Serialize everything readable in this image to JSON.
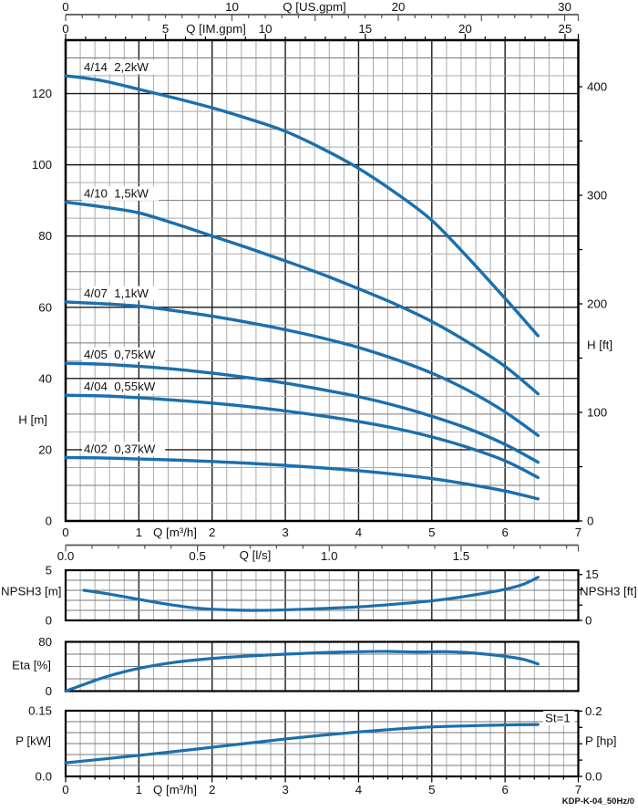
{
  "footer": {
    "code": "KDP-K-04_50Hz/0"
  },
  "colors": {
    "curve": "#1b6fad",
    "grid_minor": "#aaaaaa",
    "grid_mid": "#777777",
    "grid_major": "#1a1a1a",
    "small_grid_h": "#777777",
    "frame": "#000000",
    "axis_line": "#555555",
    "text": "#111111"
  },
  "aux_axes": {
    "us_gpm": {
      "label": "Q [US.gpm]",
      "m3h_per_unit": 0.2271247,
      "max": 30,
      "minor": 1,
      "major": 5,
      "tick_labels": [
        [
          "0",
          0
        ],
        [
          "10",
          10
        ],
        [
          "20",
          20
        ],
        [
          "30",
          30
        ]
      ]
    },
    "im_gpm": {
      "label": "Q [IM.gpm]",
      "m3h_per_unit": 0.27276,
      "max": 25,
      "minor": 1,
      "major": 5,
      "tick_labels": [
        [
          "0",
          0
        ],
        [
          "5",
          5
        ],
        [
          "10",
          10
        ],
        [
          "15",
          15
        ],
        [
          "20",
          20
        ],
        [
          "25",
          25
        ]
      ]
    },
    "l_s": {
      "label": "Q [l/s]",
      "m3h_per_unit": 3.6,
      "max": 1.9,
      "minor": 0.1,
      "major": 0.5,
      "tick_labels": [
        [
          "0.0",
          0
        ],
        [
          "0.5",
          0.5
        ],
        [
          "1.0",
          1
        ],
        [
          "1.5",
          1.5
        ]
      ]
    }
  },
  "bottom_axis": {
    "label": "Q [m³/h]",
    "tick_labels": [
      [
        "0",
        0
      ],
      [
        "1",
        1
      ],
      [
        "2",
        2
      ],
      [
        "3",
        3
      ],
      [
        "4",
        4
      ],
      [
        "5",
        5
      ],
      [
        "6",
        6
      ],
      [
        "7",
        7
      ]
    ]
  },
  "chart_data": [
    {
      "id": "head",
      "type": "line",
      "x_axis": {
        "label": "Q [m³/h]",
        "range": [
          0,
          7
        ],
        "minor": 0.2,
        "major": 1,
        "tick_labels": [
          [
            "0",
            0
          ],
          [
            "1",
            1
          ],
          [
            "2",
            2
          ],
          [
            "3",
            3
          ],
          [
            "4",
            4
          ],
          [
            "5",
            5
          ],
          [
            "6",
            6
          ],
          [
            "7",
            7
          ]
        ]
      },
      "y_left": {
        "label": "H [m]",
        "range": [
          0,
          135
        ],
        "minor": 5,
        "mid": 10,
        "major": 20,
        "tick_labels": [
          [
            "0",
            0
          ],
          [
            "20",
            20
          ],
          [
            "40",
            40
          ],
          [
            "60",
            60
          ],
          [
            "80",
            80
          ],
          [
            "100",
            100
          ],
          [
            "120",
            120
          ]
        ]
      },
      "y_right": {
        "label": "H [ft]",
        "m_per_unit": 0.3048,
        "tick_step": 50,
        "tick_labels": [
          [
            "0",
            0
          ],
          [
            "100",
            100
          ],
          [
            "200",
            200
          ],
          [
            "300",
            300
          ],
          [
            "400",
            400
          ]
        ]
      },
      "series": [
        {
          "name": "4/14",
          "power": "2,2kW",
          "points": [
            [
              0,
              125
            ],
            [
              0.5,
              123.6
            ],
            [
              1,
              121.2
            ],
            [
              1.5,
              118.7
            ],
            [
              2,
              116
            ],
            [
              2.5,
              112.9
            ],
            [
              3,
              109.4
            ],
            [
              3.5,
              104.6
            ],
            [
              4,
              99
            ],
            [
              4.5,
              92.2
            ],
            [
              5,
              84.4
            ],
            [
              5.5,
              73.8
            ],
            [
              6,
              62.5
            ],
            [
              6.45,
              52
            ]
          ]
        },
        {
          "name": "4/10",
          "power": "1,5kW",
          "points": [
            [
              0,
              89.5
            ],
            [
              0.5,
              88.2
            ],
            [
              1,
              86.5
            ],
            [
              1.5,
              83.4
            ],
            [
              2,
              80
            ],
            [
              2.5,
              76.6
            ],
            [
              3,
              73
            ],
            [
              3.5,
              69.3
            ],
            [
              4,
              65.2
            ],
            [
              4.5,
              60.9
            ],
            [
              5,
              56
            ],
            [
              5.5,
              50.1
            ],
            [
              6,
              43.4
            ],
            [
              6.45,
              35.7
            ]
          ]
        },
        {
          "name": "4/07",
          "power": "1,1kW",
          "points": [
            [
              0,
              61.5
            ],
            [
              0.5,
              61
            ],
            [
              1,
              60.3
            ],
            [
              1.5,
              59
            ],
            [
              2,
              57.5
            ],
            [
              2.5,
              55.7
            ],
            [
              3,
              53.7
            ],
            [
              3.5,
              51.4
            ],
            [
              4,
              48.7
            ],
            [
              4.5,
              45.4
            ],
            [
              5,
              41.5
            ],
            [
              5.5,
              36.6
            ],
            [
              6,
              30.6
            ],
            [
              6.45,
              24
            ]
          ]
        },
        {
          "name": "4/05",
          "power": "0,75kW",
          "points": [
            [
              0,
              44.3
            ],
            [
              0.5,
              44
            ],
            [
              1,
              43.4
            ],
            [
              1.5,
              42.6
            ],
            [
              2,
              41.5
            ],
            [
              2.5,
              40.2
            ],
            [
              3,
              38.7
            ],
            [
              3.5,
              36.9
            ],
            [
              4,
              34.9
            ],
            [
              4.5,
              32.4
            ],
            [
              5,
              29.4
            ],
            [
              5.5,
              25.9
            ],
            [
              6,
              21.5
            ],
            [
              6.45,
              16.5
            ]
          ]
        },
        {
          "name": "4/04",
          "power": "0,55kW",
          "points": [
            [
              0,
              35.3
            ],
            [
              0.5,
              35.1
            ],
            [
              1,
              34.6
            ],
            [
              1.5,
              33.9
            ],
            [
              2,
              33.1
            ],
            [
              2.5,
              32.1
            ],
            [
              3,
              30.9
            ],
            [
              3.5,
              29.5
            ],
            [
              4,
              27.9
            ],
            [
              4.5,
              26
            ],
            [
              5,
              23.6
            ],
            [
              5.5,
              20.6
            ],
            [
              6,
              16.9
            ],
            [
              6.45,
              12.2
            ]
          ]
        },
        {
          "name": "4/02",
          "power": "0,37kW",
          "points": [
            [
              0,
              17.8
            ],
            [
              0.5,
              17.7
            ],
            [
              1,
              17.4
            ],
            [
              1.5,
              17.1
            ],
            [
              2,
              16.7
            ],
            [
              2.5,
              16.2
            ],
            [
              3,
              15.6
            ],
            [
              3.5,
              14.9
            ],
            [
              4,
              14.1
            ],
            [
              4.5,
              13.1
            ],
            [
              5,
              11.9
            ],
            [
              5.5,
              10.3
            ],
            [
              6,
              8.4
            ],
            [
              6.45,
              6.2
            ]
          ]
        }
      ]
    },
    {
      "id": "npsh",
      "type": "line",
      "y_left": {
        "label": "NPSH3 [m]",
        "range": [
          0,
          5
        ],
        "minor": 1,
        "tick_labels": [
          [
            "5",
            5
          ],
          [
            "0",
            0
          ]
        ]
      },
      "y_right": {
        "label": "NPSH3 [ft]",
        "m_per_unit": 0.3048,
        "tick_step": 5,
        "tick_labels": [
          [
            "15",
            15
          ],
          [
            "0",
            0
          ]
        ]
      },
      "series": [
        {
          "name": "NPSH3",
          "points": [
            [
              0.25,
              3
            ],
            [
              0.6,
              2.62
            ],
            [
              1,
              2.1
            ],
            [
              1.4,
              1.6
            ],
            [
              1.8,
              1.22
            ],
            [
              2.2,
              1.05
            ],
            [
              2.6,
              1
            ],
            [
              3,
              1.05
            ],
            [
              3.5,
              1.18
            ],
            [
              4,
              1.35
            ],
            [
              4.5,
              1.62
            ],
            [
              5,
              1.95
            ],
            [
              5.5,
              2.45
            ],
            [
              6,
              3.1
            ],
            [
              6.25,
              3.6
            ],
            [
              6.45,
              4.3
            ]
          ]
        }
      ]
    },
    {
      "id": "eta",
      "type": "line",
      "y_left": {
        "label": "Eta [%]",
        "range": [
          0,
          80
        ],
        "minor": 20,
        "tick_labels": [
          [
            "80",
            80
          ],
          [
            "0",
            0
          ]
        ]
      },
      "series": [
        {
          "name": "Eta",
          "points": [
            [
              0,
              0
            ],
            [
              0.3,
              13
            ],
            [
              0.6,
              25
            ],
            [
              1,
              37
            ],
            [
              1.5,
              47
            ],
            [
              2,
              53
            ],
            [
              2.5,
              57
            ],
            [
              3,
              60
            ],
            [
              3.5,
              62.5
            ],
            [
              4,
              64
            ],
            [
              4.4,
              64.5
            ],
            [
              4.8,
              63.5
            ],
            [
              5.2,
              64
            ],
            [
              5.6,
              61.5
            ],
            [
              6,
              56.5
            ],
            [
              6.25,
              51.5
            ],
            [
              6.45,
              44
            ]
          ]
        }
      ]
    },
    {
      "id": "power",
      "type": "line",
      "y_left": {
        "label": "P [kW]",
        "range": [
          0,
          0.15
        ],
        "minor": 0.025,
        "tick_labels": [
          [
            "0.15",
            0.15
          ],
          [
            "0.0",
            0
          ]
        ]
      },
      "y_right": {
        "label": "P [hp]",
        "kw_per_unit": 0.7457,
        "tick_step": 0.05,
        "tick_labels": [
          [
            "0.2",
            0.2
          ],
          [
            "0.0",
            0
          ]
        ]
      },
      "annotation": {
        "text": "St=1"
      },
      "series": [
        {
          "name": "P",
          "points": [
            [
              0,
              0.031
            ],
            [
              0.5,
              0.0395
            ],
            [
              1,
              0.048
            ],
            [
              1.5,
              0.057
            ],
            [
              2,
              0.0665
            ],
            [
              2.5,
              0.076
            ],
            [
              3,
              0.0855
            ],
            [
              3.5,
              0.094
            ],
            [
              4,
              0.1015
            ],
            [
              4.5,
              0.108
            ],
            [
              5,
              0.113
            ],
            [
              5.5,
              0.1155
            ],
            [
              6,
              0.1175
            ],
            [
              6.45,
              0.1185
            ]
          ]
        }
      ]
    }
  ]
}
